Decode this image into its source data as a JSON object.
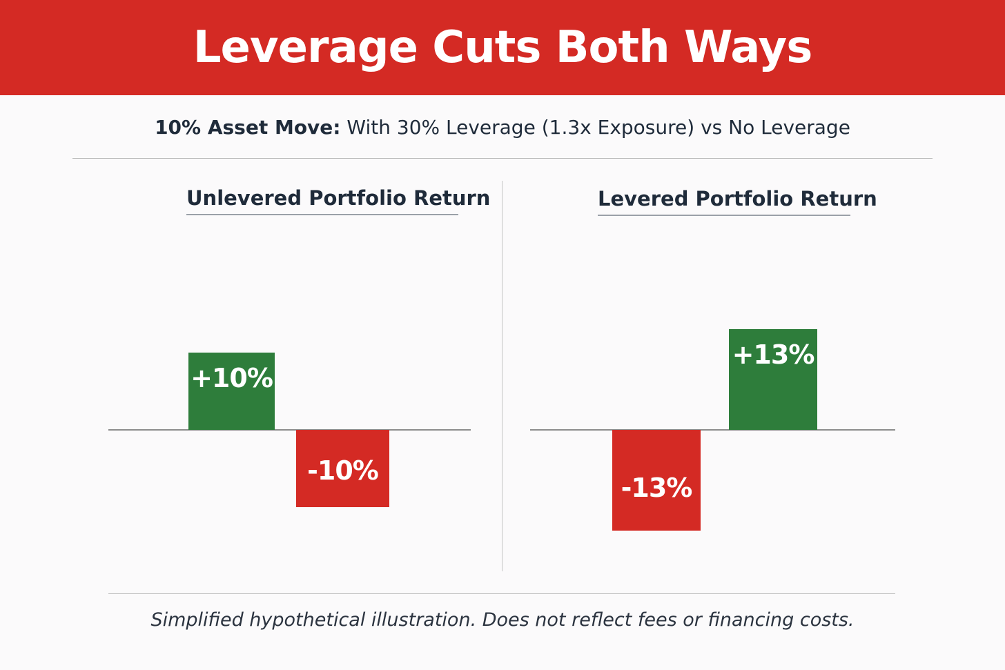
{
  "title": "Leverage Cuts Both Ways",
  "subtitle": {
    "lead": "10% Asset Move:",
    "rest": " With 30% Leverage (1.3x Exposure) vs No Leverage"
  },
  "footnote": "Simplified hypothetical illustration. Does not reflect fees or financing costs.",
  "colors": {
    "banner": "#d42a24",
    "positive": "#2e7d3b",
    "negative": "#d42a24"
  },
  "chart_data": [
    {
      "type": "bar",
      "title": "Unlevered Portfolio Return",
      "unit": "%",
      "bars": [
        {
          "value": 10,
          "label": "+10%",
          "color": "#2e7d3b"
        },
        {
          "value": -10,
          "label": "-10%",
          "color": "#d42a24"
        }
      ]
    },
    {
      "type": "bar",
      "title": "Levered Portfolio Return",
      "unit": "%",
      "bars": [
        {
          "value": -13,
          "label": "-13%",
          "color": "#d42a24"
        },
        {
          "value": 13,
          "label": "+13%",
          "color": "#2e7d3b"
        }
      ]
    }
  ]
}
